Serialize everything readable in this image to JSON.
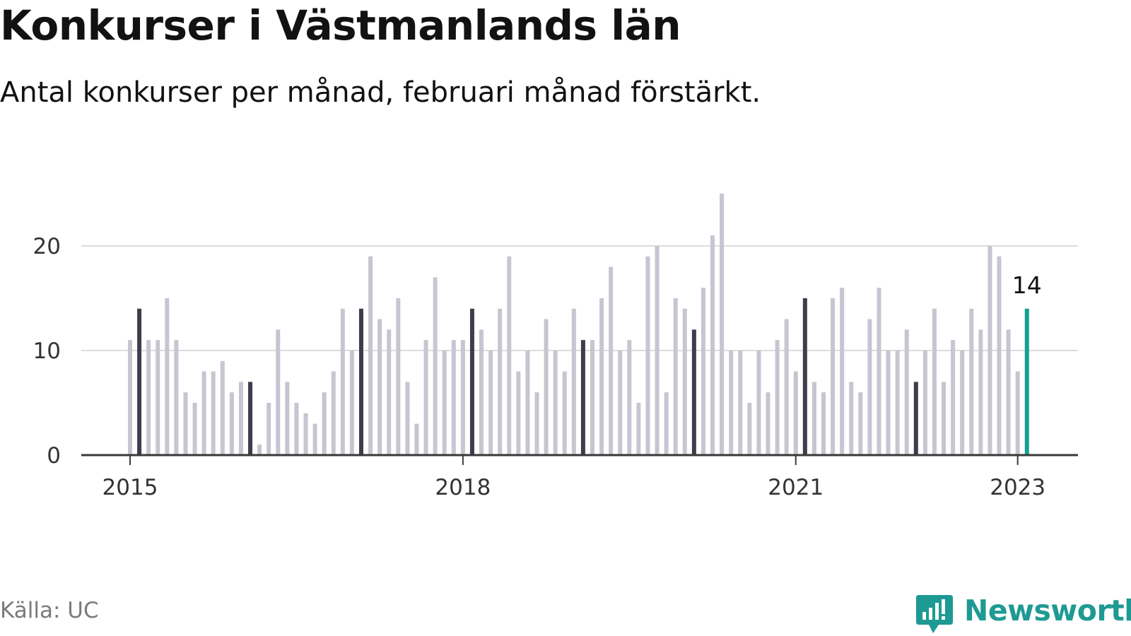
{
  "title": "Konkurser i Västmanlands län",
  "subtitle": "Antal konkurser per månad, februari månad förstärkt.",
  "source": "Källa: UC",
  "brand": {
    "name": "Newsworthy",
    "logo_icon": "newsworthy-chart-bubble-icon",
    "color": "#1d9a93"
  },
  "colors": {
    "regular": "#c6c5d1",
    "february": "#3e3d4c",
    "latest": "#13a091",
    "grid": "#dcdcdc",
    "axis": "#3a3a3a"
  },
  "chart_data": {
    "type": "bar",
    "x_start": "2015-01",
    "interval": "month",
    "x_ticks": [
      "2015",
      "2018",
      "2021",
      "2023"
    ],
    "y_ticks": [
      0,
      10,
      20
    ],
    "ylim": [
      0,
      25
    ],
    "grid": true,
    "highlight": "February bars darker; latest month highlighted with value label",
    "values": [
      11,
      14,
      11,
      11,
      15,
      11,
      6,
      5,
      8,
      8,
      9,
      6,
      7,
      7,
      1,
      5,
      12,
      7,
      5,
      4,
      3,
      6,
      8,
      14,
      10,
      14,
      19,
      13,
      12,
      15,
      7,
      3,
      11,
      17,
      10,
      11,
      11,
      14,
      12,
      10,
      14,
      19,
      8,
      10,
      6,
      13,
      10,
      8,
      14,
      11,
      11,
      15,
      18,
      10,
      11,
      5,
      19,
      20,
      6,
      15,
      14,
      12,
      16,
      21,
      25,
      10,
      10,
      5,
      10,
      6,
      11,
      13,
      8,
      15,
      7,
      6,
      15,
      16,
      7,
      6,
      13,
      16,
      10,
      10,
      12,
      7,
      10,
      14,
      7,
      11,
      10,
      14,
      12,
      20,
      19,
      12,
      8,
      14
    ],
    "latest_label": "14"
  }
}
